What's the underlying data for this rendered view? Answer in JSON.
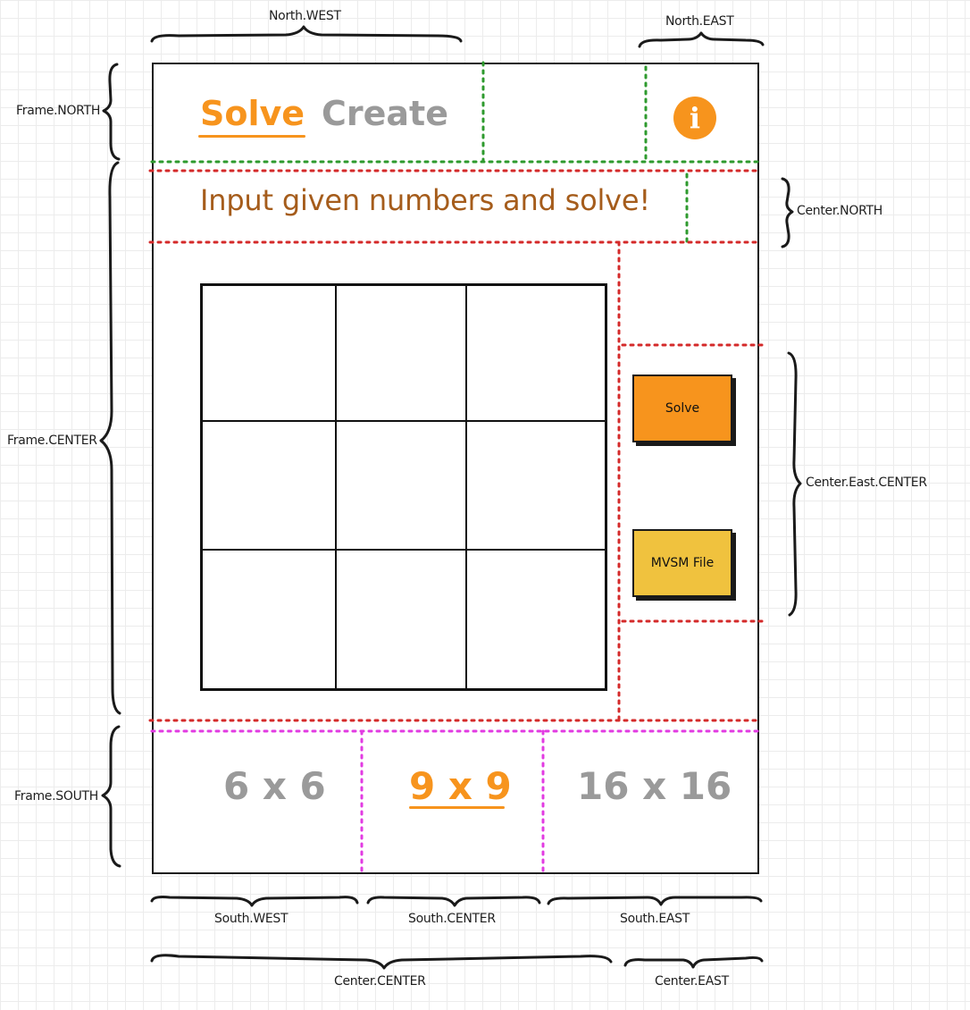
{
  "north_tabs": {
    "solve_label": "Solve",
    "create_label": "Create",
    "active": "Solve"
  },
  "info_icon": {
    "glyph": "i",
    "icon": "info-icon"
  },
  "instruction": "Input given numbers and solve!",
  "grid": {
    "rows": 3,
    "cols": 3
  },
  "buttons": {
    "solve_label": "Solve",
    "file_label": "MVSM File"
  },
  "sizes": {
    "six_label": "6 x 6",
    "nine_label": "9 x 9",
    "sixteen_label": "16 x 16",
    "active": "9 x 9"
  },
  "region_labels": {
    "north_west": "North.WEST",
    "north_east": "North.EAST",
    "frame_north": "Frame.NORTH",
    "frame_center": "Frame.CENTER",
    "frame_south": "Frame.SOUTH",
    "center_north": "Center.NORTH",
    "center_east_center": "Center.East.CENTER",
    "south_west": "South.WEST",
    "south_center": "South.CENTER",
    "south_east": "South.EAST",
    "center_center": "Center.CENTER",
    "center_east": "Center.EAST"
  },
  "colors": {
    "accent_orange": "#f7941d",
    "mvsm_yellow": "#f0c23e",
    "inactive_gray": "#9a9a9a",
    "instruction_brown": "#a55c1b",
    "guide_green": "#2e9a2e",
    "guide_red": "#d42a2a",
    "guide_magenta": "#e23be2"
  }
}
